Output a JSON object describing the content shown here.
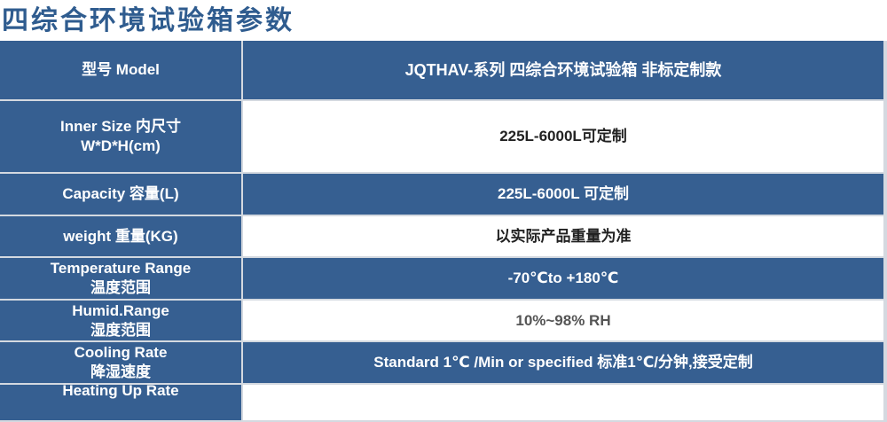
{
  "title": "四综合环境试验箱参数",
  "colors": {
    "header_blue": "#365f91",
    "title_blue": "#2f5c8f"
  },
  "rows": [
    {
      "label": "型号 Model",
      "label2": "",
      "value": "JQTHAV-系列  四综合环境试验箱  非标定制款",
      "style": "blue"
    },
    {
      "label": "Inner Size 内尺寸",
      "label2": "W*D*H(cm)",
      "value": "225L-6000L可定制",
      "style": "white"
    },
    {
      "label": "Capacity 容量(L)",
      "label2": "",
      "value": "225L-6000L 可定制",
      "style": "blue"
    },
    {
      "label": "weight 重量(KG)",
      "label2": "",
      "value": "以实际产品重量为准",
      "style": "white"
    },
    {
      "label": "Temperature Range",
      "label2": "温度范围",
      "value": "-70℃to +180℃",
      "style": "blue"
    },
    {
      "label": "Humid.Range",
      "label2": "湿度范围",
      "value": "10%~98% RH",
      "style": "white gray"
    },
    {
      "label": "Cooling Rate",
      "label2": "降湿速度",
      "value": "Standard 1℃ /Min or specified  标准1℃/分钟,接受定制",
      "style": "blue"
    },
    {
      "label": "Heating Up Rate",
      "label2": "",
      "value": "",
      "style": "white"
    }
  ]
}
